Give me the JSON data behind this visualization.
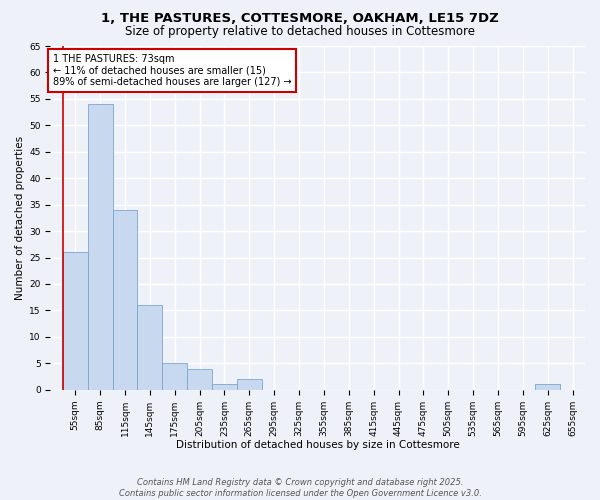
{
  "title": "1, THE PASTURES, COTTESMORE, OAKHAM, LE15 7DZ",
  "subtitle": "Size of property relative to detached houses in Cottesmore",
  "xlabel": "Distribution of detached houses by size in Cottesmore",
  "ylabel": "Number of detached properties",
  "bins": [
    "55sqm",
    "85sqm",
    "115sqm",
    "145sqm",
    "175sqm",
    "205sqm",
    "235sqm",
    "265sqm",
    "295sqm",
    "325sqm",
    "355sqm",
    "385sqm",
    "415sqm",
    "445sqm",
    "475sqm",
    "505sqm",
    "535sqm",
    "565sqm",
    "595sqm",
    "625sqm",
    "655sqm"
  ],
  "values": [
    26,
    54,
    34,
    16,
    5,
    4,
    1,
    2,
    0,
    0,
    0,
    0,
    0,
    0,
    0,
    0,
    0,
    0,
    0,
    1,
    0
  ],
  "bar_color": "#c8d8ee",
  "bar_edge_color": "#7aa8d0",
  "annotation_text": "1 THE PASTURES: 73sqm\n← 11% of detached houses are smaller (15)\n89% of semi-detached houses are larger (127) →",
  "annotation_box_color": "white",
  "annotation_box_edge_color": "#cc0000",
  "vline_color": "#cc0000",
  "vline_x": -0.5,
  "ylim": [
    0,
    65
  ],
  "yticks": [
    0,
    5,
    10,
    15,
    20,
    25,
    30,
    35,
    40,
    45,
    50,
    55,
    60,
    65
  ],
  "background_color": "#eef2f8",
  "grid_color": "white",
  "footer_line1": "Contains HM Land Registry data © Crown copyright and database right 2025.",
  "footer_line2": "Contains public sector information licensed under the Open Government Licence v3.0.",
  "title_fontsize": 9.5,
  "subtitle_fontsize": 8.5,
  "axis_label_fontsize": 7.5,
  "tick_fontsize": 6.5,
  "annotation_fontsize": 7,
  "footer_fontsize": 6
}
